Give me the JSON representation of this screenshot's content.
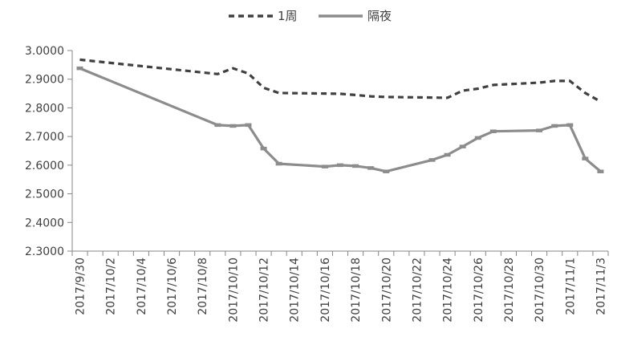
{
  "chart_data": {
    "type": "line",
    "title": "",
    "xlabel": "",
    "ylabel": "",
    "ylim": [
      2.3,
      3.0
    ],
    "y_ticks": [
      "3.0000",
      "2.9000",
      "2.8000",
      "2.7000",
      "2.6000",
      "2.5000",
      "2.4000",
      "2.3000"
    ],
    "x_tick_labels": [
      "2017/9/30",
      "2017/10/2",
      "2017/10/4",
      "2017/10/6",
      "2017/10/8",
      "2017/10/10",
      "2017/10/12",
      "2017/10/14",
      "2017/10/16",
      "2017/10/18",
      "2017/10/20",
      "2017/10/22",
      "2017/10/24",
      "2017/10/26",
      "2017/10/28",
      "2017/10/30",
      "2017/11/1",
      "2017/11/3"
    ],
    "legend": {
      "position": "top"
    },
    "series": [
      {
        "name": "1周",
        "style": "dashed",
        "color": "#404040",
        "points": [
          {
            "x": "2017/9/30",
            "y": 2.968
          },
          {
            "x": "2017/10/9",
            "y": 2.918
          },
          {
            "x": "2017/10/10",
            "y": 2.938
          },
          {
            "x": "2017/10/11",
            "y": 2.92
          },
          {
            "x": "2017/10/12",
            "y": 2.87
          },
          {
            "x": "2017/10/13",
            "y": 2.852
          },
          {
            "x": "2017/10/16",
            "y": 2.85
          },
          {
            "x": "2017/10/17",
            "y": 2.849
          },
          {
            "x": "2017/10/18",
            "y": 2.845
          },
          {
            "x": "2017/10/19",
            "y": 2.84
          },
          {
            "x": "2017/10/20",
            "y": 2.838
          },
          {
            "x": "2017/10/23",
            "y": 2.836
          },
          {
            "x": "2017/10/24",
            "y": 2.835
          },
          {
            "x": "2017/10/25",
            "y": 2.86
          },
          {
            "x": "2017/10/26",
            "y": 2.867
          },
          {
            "x": "2017/10/27",
            "y": 2.88
          },
          {
            "x": "2017/10/30",
            "y": 2.888
          },
          {
            "x": "2017/10/31",
            "y": 2.894
          },
          {
            "x": "2017/11/1",
            "y": 2.894
          },
          {
            "x": "2017/11/2",
            "y": 2.852
          },
          {
            "x": "2017/11/3",
            "y": 2.822
          }
        ]
      },
      {
        "name": "隔夜",
        "style": "solid",
        "color": "#8c8c8c",
        "points": [
          {
            "x": "2017/9/30",
            "y": 2.938
          },
          {
            "x": "2017/10/9",
            "y": 2.74
          },
          {
            "x": "2017/10/10",
            "y": 2.737
          },
          {
            "x": "2017/10/11",
            "y": 2.74
          },
          {
            "x": "2017/10/12",
            "y": 2.658
          },
          {
            "x": "2017/10/13",
            "y": 2.605
          },
          {
            "x": "2017/10/16",
            "y": 2.595
          },
          {
            "x": "2017/10/17",
            "y": 2.6
          },
          {
            "x": "2017/10/18",
            "y": 2.597
          },
          {
            "x": "2017/10/19",
            "y": 2.59
          },
          {
            "x": "2017/10/20",
            "y": 2.578
          },
          {
            "x": "2017/10/23",
            "y": 2.618
          },
          {
            "x": "2017/10/24",
            "y": 2.636
          },
          {
            "x": "2017/10/25",
            "y": 2.665
          },
          {
            "x": "2017/10/26",
            "y": 2.695
          },
          {
            "x": "2017/10/27",
            "y": 2.718
          },
          {
            "x": "2017/10/30",
            "y": 2.721
          },
          {
            "x": "2017/10/31",
            "y": 2.737
          },
          {
            "x": "2017/11/1",
            "y": 2.74
          },
          {
            "x": "2017/11/2",
            "y": 2.623
          },
          {
            "x": "2017/11/3",
            "y": 2.578
          }
        ]
      }
    ]
  }
}
